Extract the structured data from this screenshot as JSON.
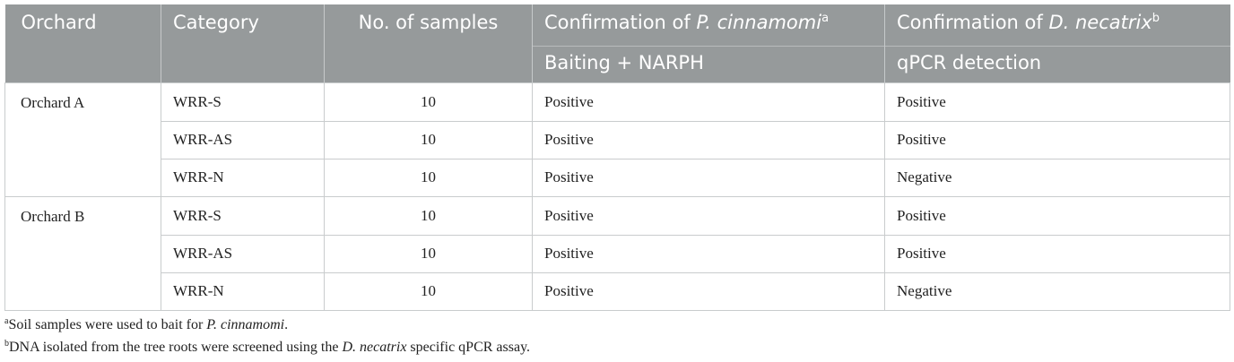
{
  "table": {
    "headers": {
      "orchard": "Orchard",
      "category": "Category",
      "samples": "No. of samples",
      "confirm_pc_prefix": "Confirmation of ",
      "confirm_pc_species": "P. cinnamomi",
      "confirm_pc_note": "a",
      "confirm_dn_prefix": "Confirmation of ",
      "confirm_dn_species": "D. necatrix",
      "confirm_dn_note": "b",
      "method_pc": "Baiting + NARPH",
      "method_dn": "qPCR detection"
    },
    "groups": [
      {
        "orchard": "Orchard A",
        "rows": [
          {
            "category": "WRR-S",
            "samples": "10",
            "pc": "Positive",
            "dn": "Positive"
          },
          {
            "category": "WRR-AS",
            "samples": "10",
            "pc": "Positive",
            "dn": "Positive"
          },
          {
            "category": "WRR-N",
            "samples": "10",
            "pc": "Positive",
            "dn": "Negative"
          }
        ]
      },
      {
        "orchard": "Orchard B",
        "rows": [
          {
            "category": "WRR-S",
            "samples": "10",
            "pc": "Positive",
            "dn": "Positive"
          },
          {
            "category": "WRR-AS",
            "samples": "10",
            "pc": "Positive",
            "dn": "Positive"
          },
          {
            "category": "WRR-N",
            "samples": "10",
            "pc": "Positive",
            "dn": "Negative"
          }
        ]
      }
    ]
  },
  "footnotes": {
    "a": {
      "mark": "a",
      "text": "Soil samples were used to bait for ",
      "species": "P. cinnamomi",
      "end": "."
    },
    "b": {
      "mark": "b",
      "text": "DNA isolated from the tree roots were screened using the ",
      "species": "D. necatrix",
      "end": " specific qPCR assay."
    }
  },
  "colors": {
    "header_bg": "#969a9b",
    "header_text": "#ffffff",
    "border": "#c9cccd"
  }
}
